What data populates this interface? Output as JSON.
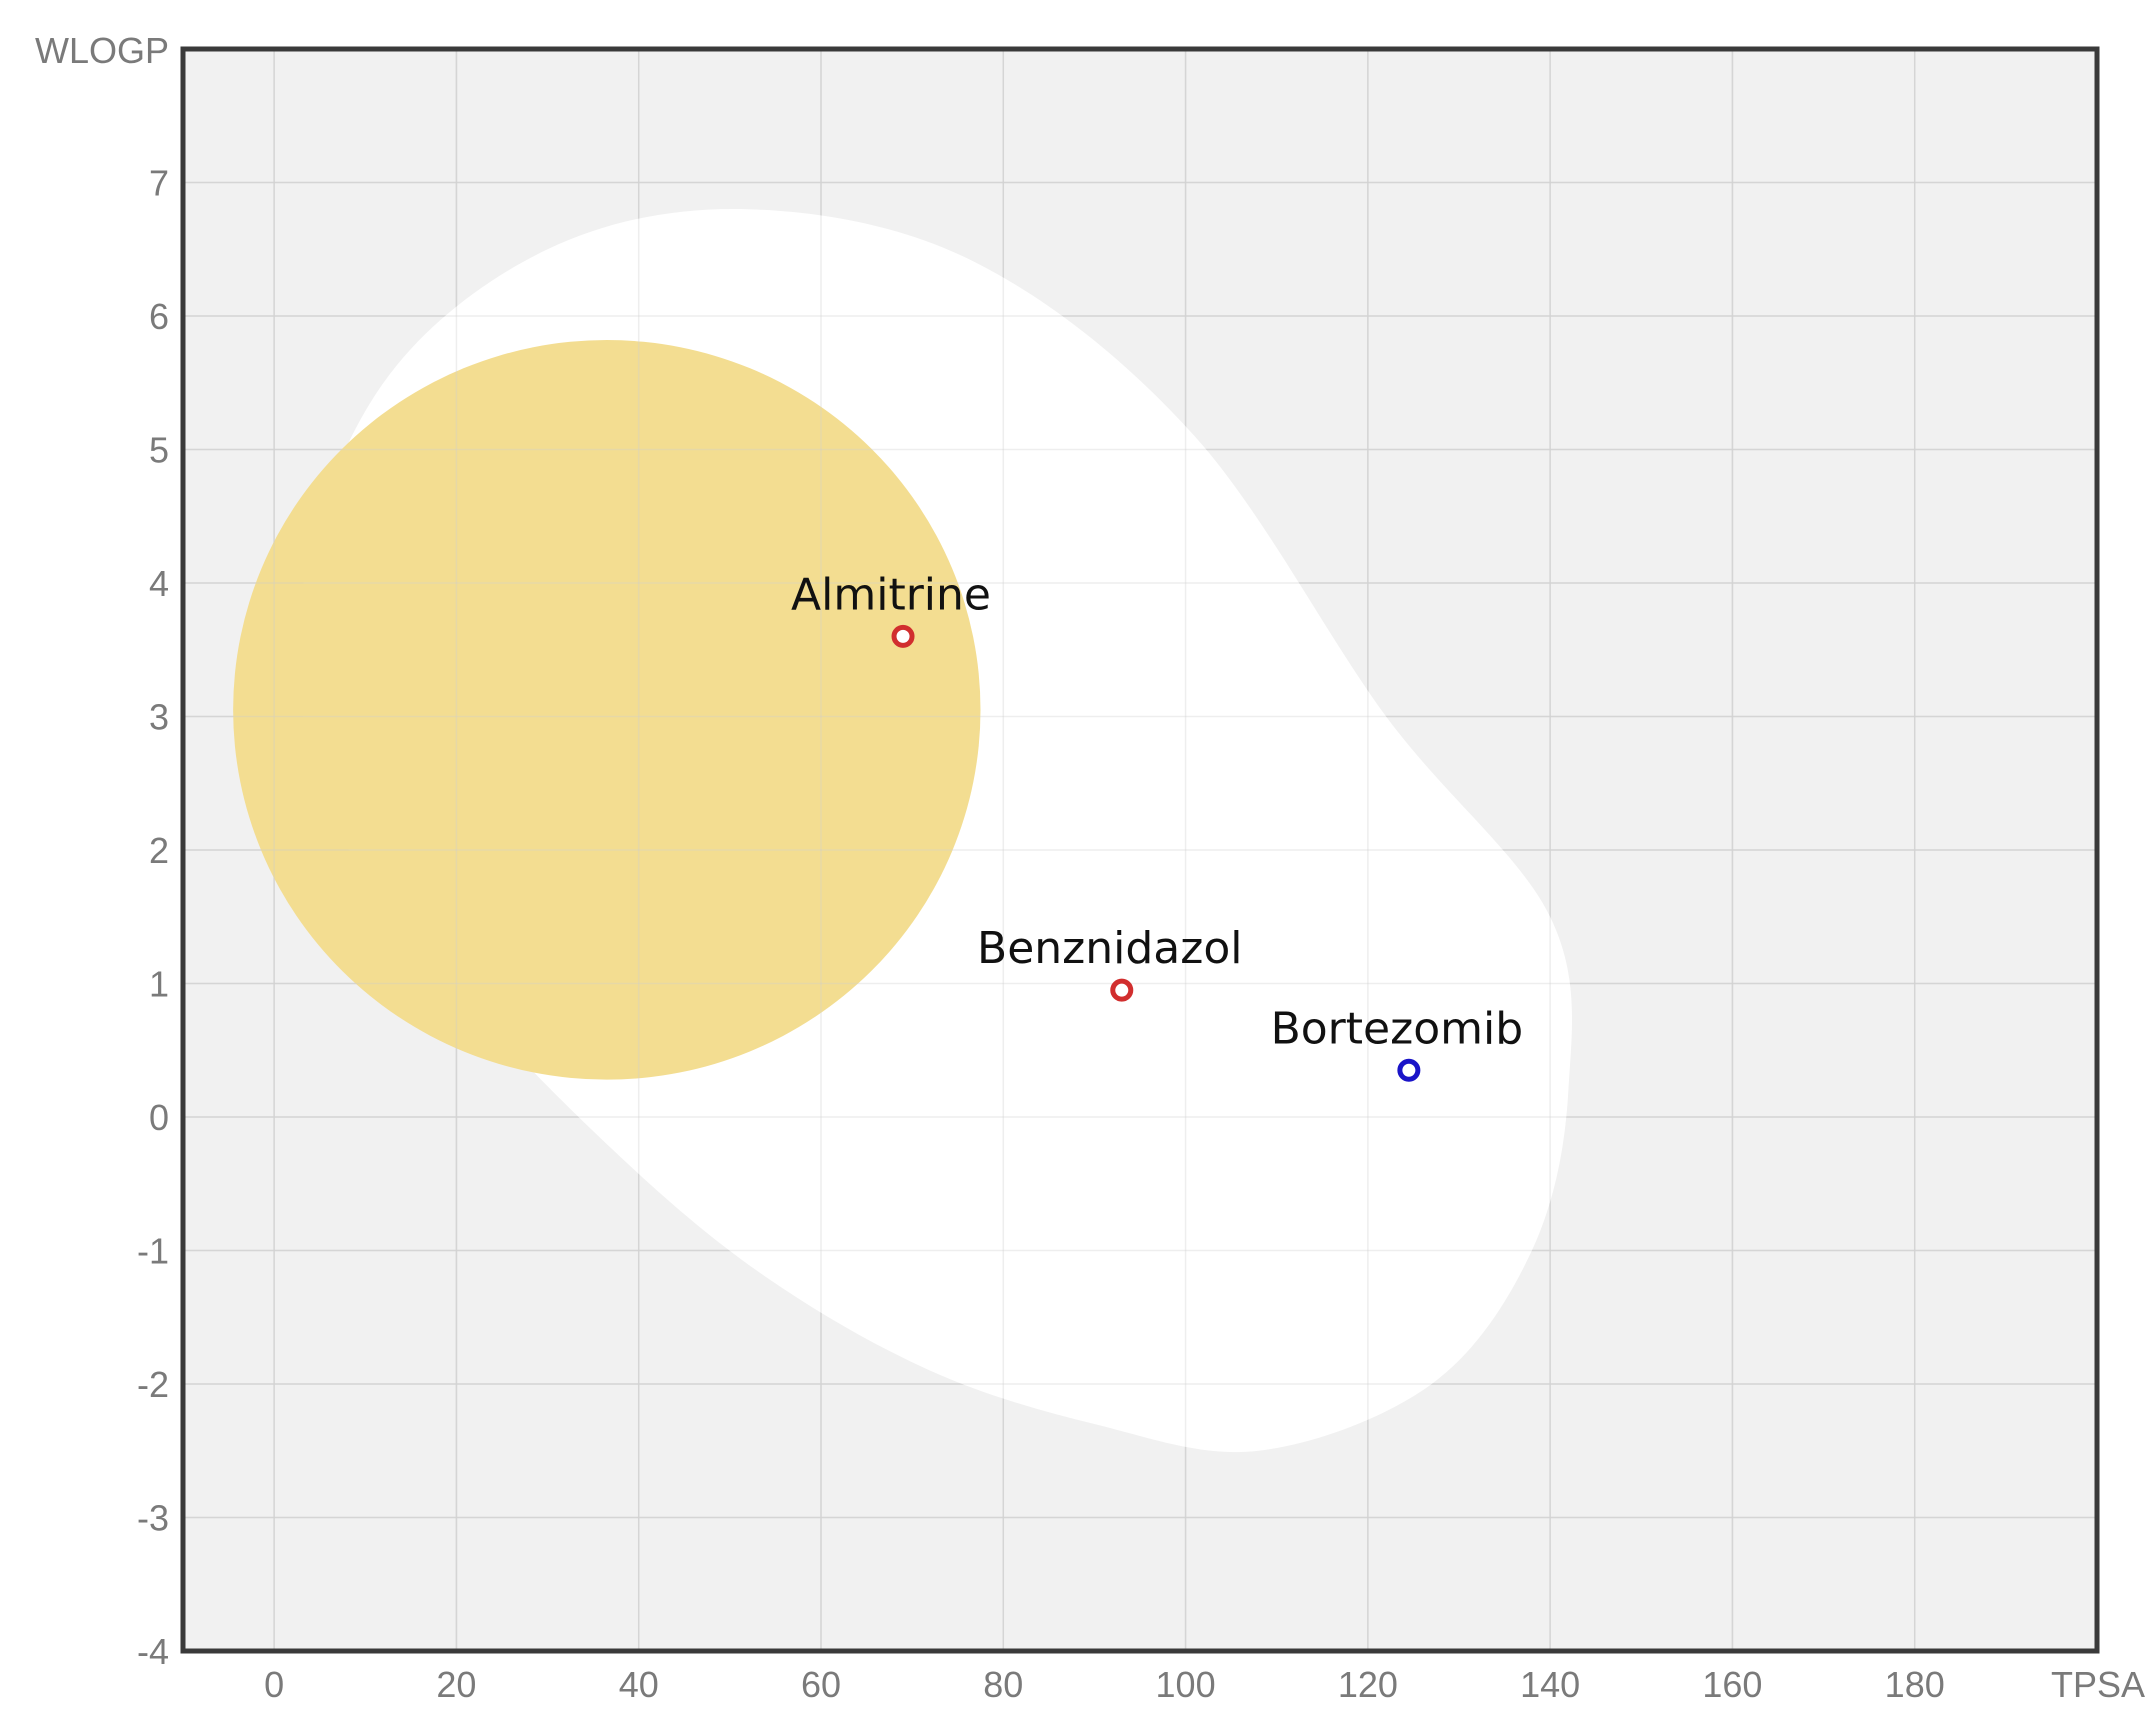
{
  "chart_data": {
    "type": "scatter",
    "title": "",
    "xlabel": "TPSA",
    "ylabel": "WLOGP",
    "xlim": [
      -10,
      200
    ],
    "ylim": [
      -4,
      8
    ],
    "x_ticks": [
      0,
      20,
      40,
      60,
      80,
      100,
      120,
      140,
      160,
      180
    ],
    "y_ticks": [
      -4,
      -3,
      -2,
      -1,
      0,
      1,
      2,
      3,
      4,
      5,
      6,
      7
    ],
    "grid": true,
    "background_color": "#f1f1f1",
    "regions": [
      {
        "name": "white",
        "color": "#ffffff",
        "polygon": [
          [
            52,
            6.8
          ],
          [
            77,
            6.4
          ],
          [
            101,
            5.1
          ],
          [
            122,
            3.0
          ],
          [
            140,
            1.5
          ],
          [
            142,
            0.2
          ],
          [
            138,
            -1.0
          ],
          [
            127,
            -2.0
          ],
          [
            108,
            -2.5
          ],
          [
            90,
            -2.3
          ],
          [
            72,
            -1.9
          ],
          [
            54,
            -1.2
          ],
          [
            38,
            -0.3
          ],
          [
            21,
            0.9
          ],
          [
            6,
            2.3
          ],
          [
            3,
            3.9
          ],
          [
            12,
            5.5
          ],
          [
            30,
            6.5
          ]
        ]
      },
      {
        "name": "yolk",
        "color": "#f3dc8c",
        "center": [
          36.5,
          3.05
        ],
        "rx": 41,
        "ry": 2.77
      }
    ],
    "points": [
      {
        "name": "Almitrine",
        "x": 69,
        "y": 3.6,
        "color": "#d12e2e"
      },
      {
        "name": "Benznidazol",
        "x": 93,
        "y": 0.95,
        "color": "#d12e2e"
      },
      {
        "name": "Bortezomib",
        "x": 124.5,
        "y": 0.35,
        "color": "#1a14c8"
      }
    ]
  }
}
